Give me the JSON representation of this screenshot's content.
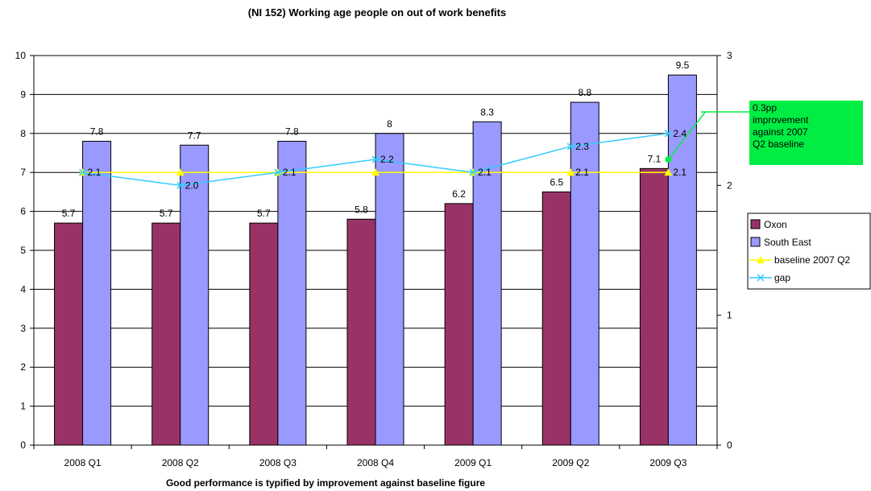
{
  "chart_data": {
    "type": "bar",
    "title": "(NI 152) Working age people on out of work benefits",
    "xlabel": "Good performance is typified by improvement against baseline figure",
    "ylabel": "",
    "categories": [
      "2008 Q1",
      "2008 Q2",
      "2008 Q3",
      "2008 Q4",
      "2009 Q1",
      "2009 Q2",
      "2009 Q3"
    ],
    "ylim": [
      0,
      10
    ],
    "y_ticks": [
      0,
      1,
      2,
      3,
      4,
      5,
      6,
      7,
      8,
      9,
      10
    ],
    "y2lim": [
      0,
      3
    ],
    "y2_ticks": [
      0,
      1,
      2,
      3
    ],
    "grid": "horizontal",
    "legend_position": "right",
    "series": [
      {
        "name": "Oxon",
        "kind": "bar",
        "axis": "left",
        "color": "#993366",
        "values": [
          5.7,
          5.7,
          5.7,
          5.8,
          6.2,
          6.5,
          7.1
        ],
        "labels": [
          "5.7",
          "5.7",
          "5.7",
          "5.8",
          "6.2",
          "6.5",
          "7.1"
        ]
      },
      {
        "name": "South East",
        "kind": "bar",
        "axis": "left",
        "color": "#9999ff",
        "values": [
          7.8,
          7.7,
          7.8,
          8,
          8.3,
          8.8,
          9.5
        ],
        "labels": [
          "7.8",
          "7.7",
          "7.8",
          "8",
          "8.3",
          "8.8",
          "9.5"
        ]
      },
      {
        "name": "baseline 2007 Q2",
        "kind": "line",
        "axis": "right",
        "color": "#ffff00",
        "marker": "triangle",
        "values": [
          2.1,
          2.1,
          2.1,
          2.1,
          2.1,
          2.1,
          2.1
        ],
        "labels": [
          "",
          "",
          "",
          "",
          "",
          "2.1",
          "2.1"
        ]
      },
      {
        "name": "gap",
        "kind": "line",
        "axis": "right",
        "color": "#33ccff",
        "marker": "x",
        "values": [
          2.1,
          2.0,
          2.1,
          2.2,
          2.1,
          2.3,
          2.4
        ],
        "labels": [
          "2.1",
          "2.0",
          "2.1",
          "2.2",
          "2.1",
          "2.3",
          "2.4"
        ]
      }
    ],
    "annotation": {
      "text": "0.3pp improvement against 2007 Q2 baseline",
      "lines": [
        "0.3pp",
        "improvement",
        "against 2007",
        "Q2 baseline"
      ],
      "color": "#00ee44",
      "point_category": "2009 Q3",
      "point_value": 2.2
    }
  }
}
